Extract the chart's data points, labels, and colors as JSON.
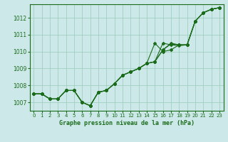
{
  "xlabel": "Graphe pression niveau de la mer (hPa)",
  "ylim": [
    1006.5,
    1012.8
  ],
  "xlim": [
    -0.5,
    23.5
  ],
  "yticks": [
    1007,
    1008,
    1009,
    1010,
    1011,
    1012
  ],
  "xticks": [
    0,
    1,
    2,
    3,
    4,
    5,
    6,
    7,
    8,
    9,
    10,
    11,
    12,
    13,
    14,
    15,
    16,
    17,
    18,
    19,
    20,
    21,
    22,
    23
  ],
  "bg_color": "#cce8e8",
  "grid_color": "#99ccbb",
  "line_color": "#1a6b1a",
  "s1": [
    1007.5,
    1007.5,
    1007.2,
    1007.2,
    1007.7,
    1007.7,
    1007.0,
    1006.8,
    1007.6,
    1007.7,
    1008.1,
    1008.6,
    1008.8,
    1009.0,
    1009.3,
    1009.4,
    1010.1,
    1010.5,
    1010.4,
    1010.4,
    1011.8,
    1012.3,
    1012.5,
    1012.6
  ],
  "s2": [
    1007.5,
    1007.5,
    1007.2,
    1007.2,
    1007.7,
    1007.7,
    1007.0,
    1006.8,
    1007.6,
    1007.7,
    1008.1,
    1008.6,
    1008.8,
    1009.0,
    1009.3,
    1010.5,
    1010.0,
    1010.1,
    1010.4,
    1010.4,
    1011.8,
    1012.3,
    1012.5,
    1012.6
  ],
  "s3": [
    1007.5,
    1007.5,
    1007.2,
    1007.2,
    1007.7,
    1007.7,
    1007.0,
    1006.8,
    1007.6,
    1007.7,
    1008.1,
    1008.6,
    1008.8,
    1009.0,
    1009.3,
    1009.4,
    1010.5,
    1010.4,
    1010.35,
    1010.4,
    1011.8,
    1012.3,
    1012.5,
    1012.6
  ],
  "s4": [
    1007.5,
    1007.5,
    1007.2,
    1007.2,
    1007.7,
    1007.7,
    1007.0,
    1006.8,
    1007.6,
    1007.7,
    1008.1,
    1008.6,
    1008.8,
    1009.0,
    1009.3,
    1009.4,
    1010.1,
    1010.45,
    1010.4,
    1010.4,
    1011.8,
    1012.3,
    1012.5,
    1012.6
  ]
}
